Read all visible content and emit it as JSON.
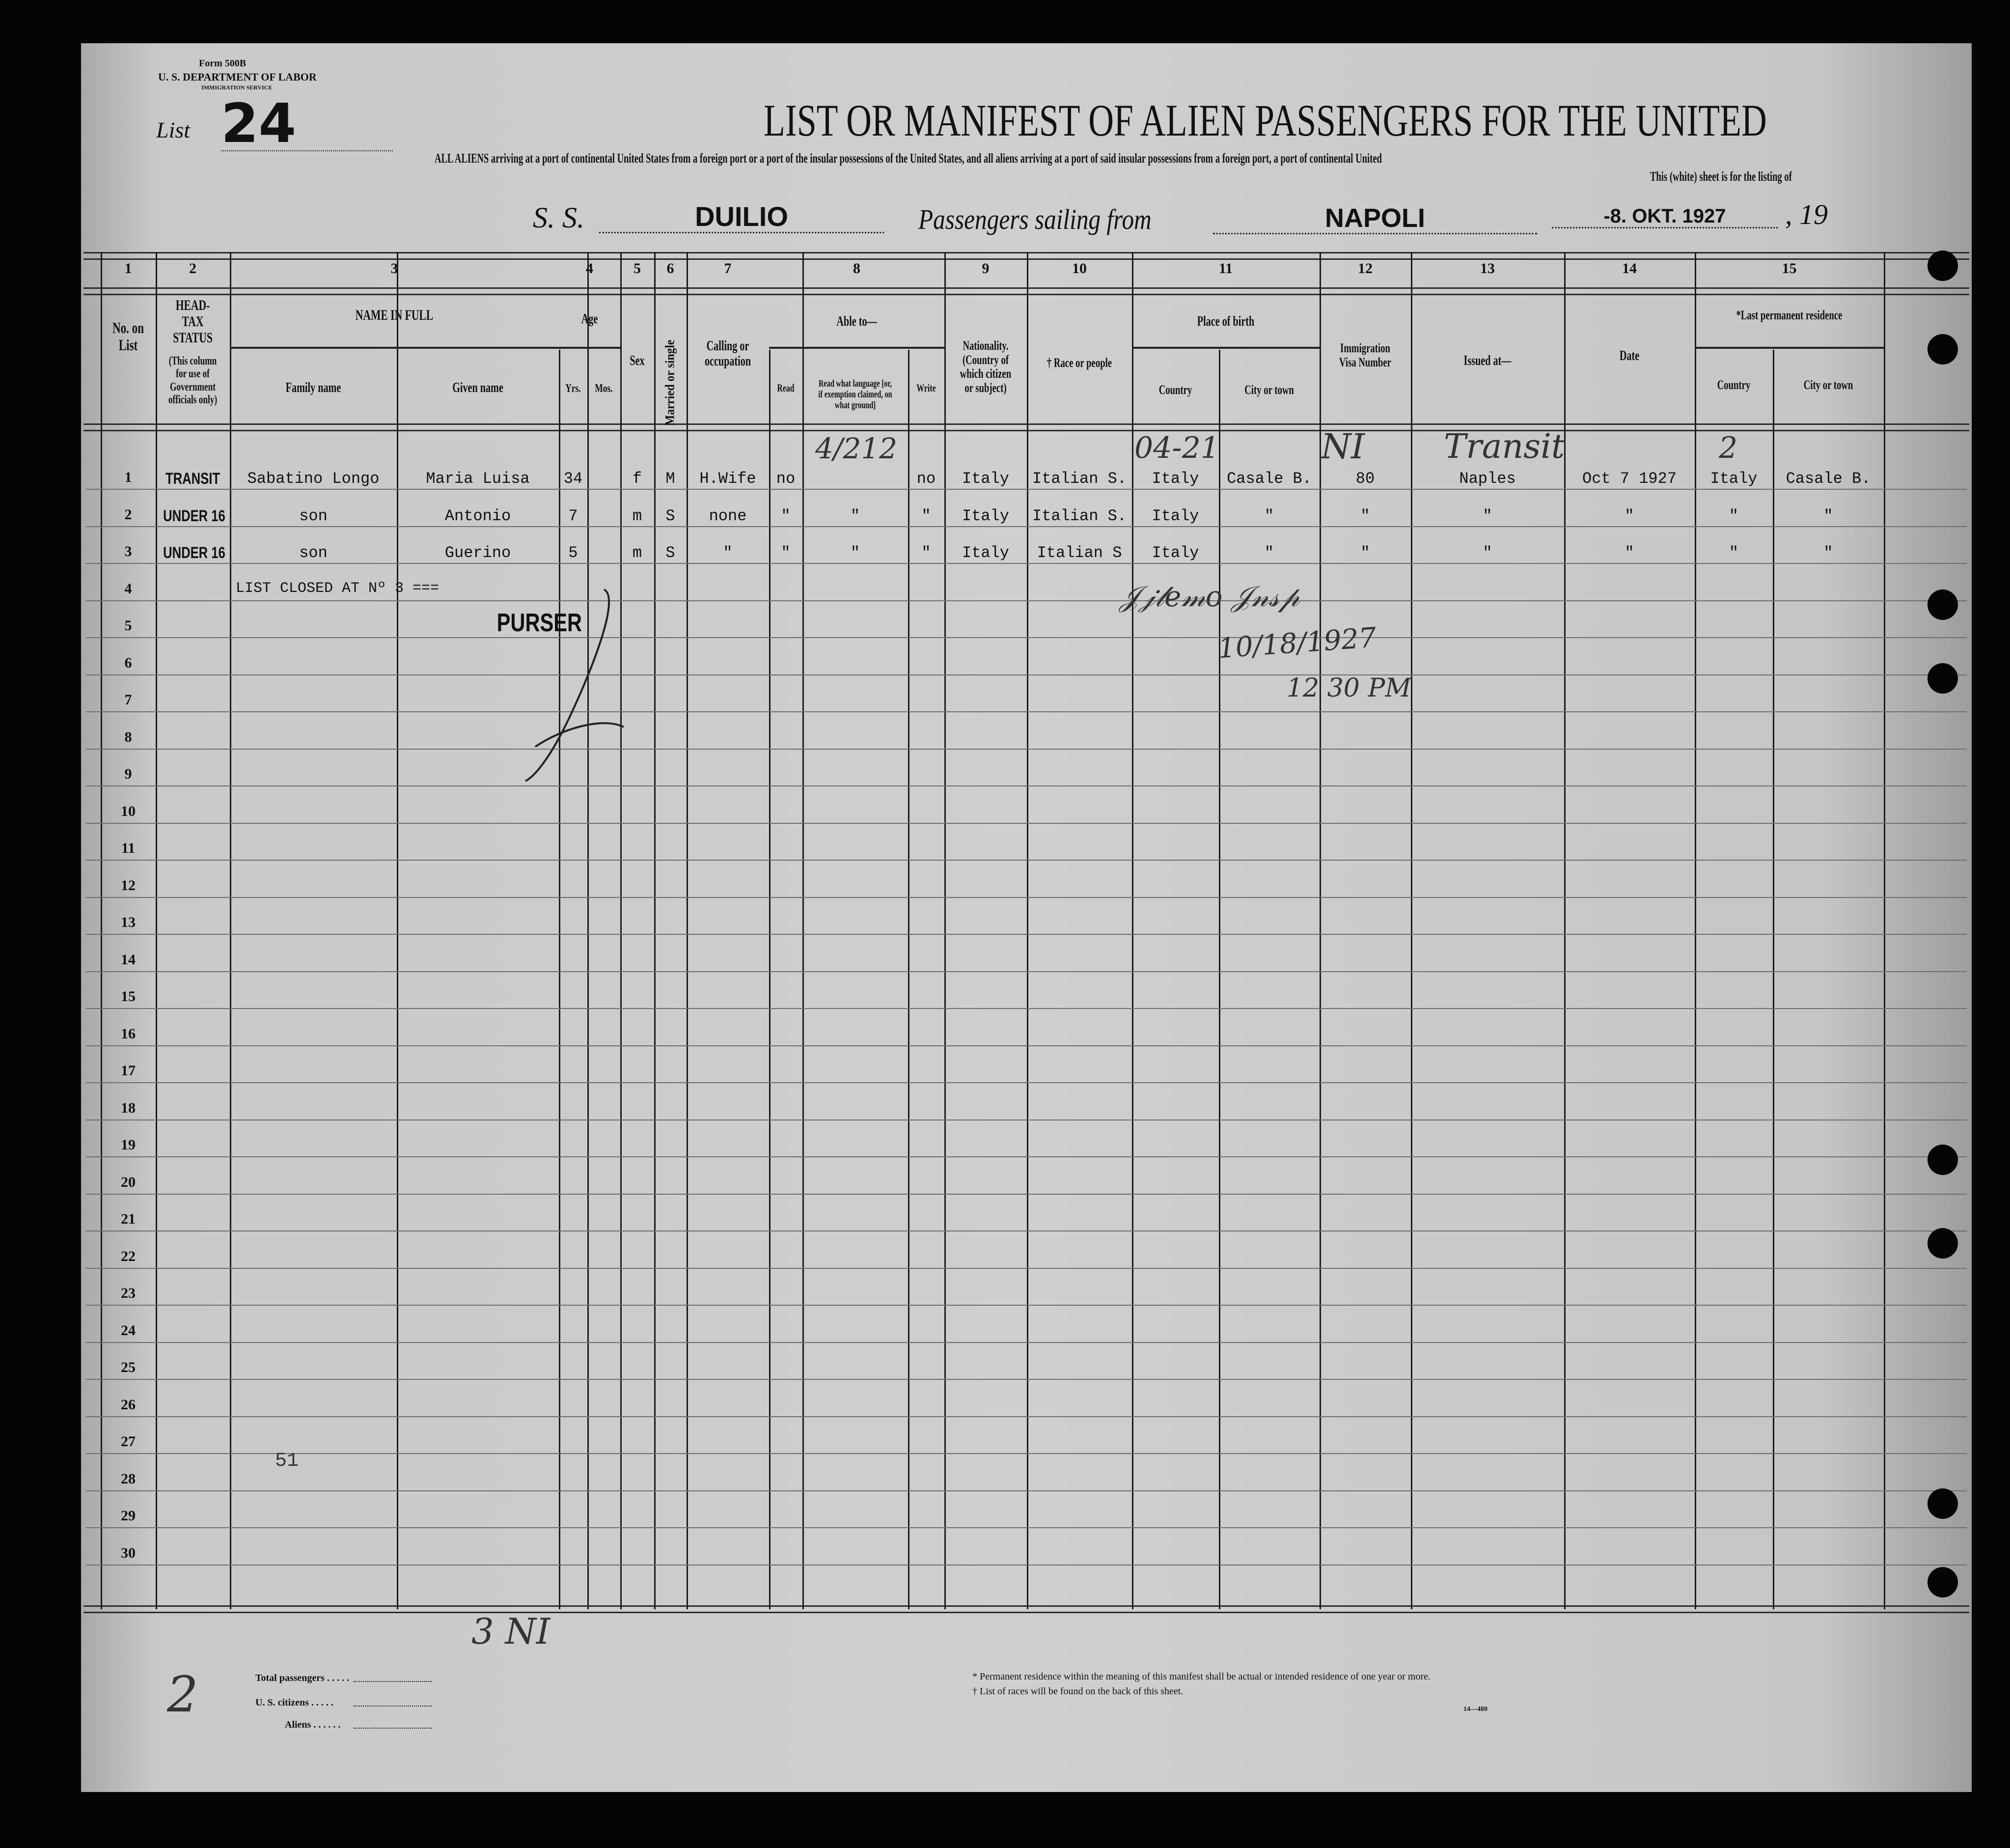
{
  "form": {
    "form_no": "Form 500B",
    "department": "U. S. DEPARTMENT OF LABOR",
    "service": "IMMIGRATION SERVICE",
    "list_label": "List",
    "list_number": "24"
  },
  "title": "LIST OR MANIFEST OF ALIEN PASSENGERS FOR THE UNITED",
  "subtitle": "ALL ALIENS arriving at a port of continental United States from a foreign port or a port of the insular possessions of the United States, and all aliens arriving at a port of said insular possessions from a foreign port, a port of continental United",
  "subtitle2": "This (white) sheet is for the listing of",
  "voyage": {
    "ss_label": "S. S.",
    "ship": "DUILIO",
    "sailing_label": "Passengers sailing from",
    "port": "NAPOLI",
    "date": "-8. OKT. 1927",
    "year_label": ", 19"
  },
  "columns": {
    "numbers": [
      "1",
      "2",
      "3",
      "4",
      "5",
      "6",
      "7",
      "8",
      "9",
      "10",
      "11",
      "12",
      "13",
      "14",
      "15"
    ],
    "no_on_list": "No. on List",
    "head_tax": "HEAD-TAX STATUS",
    "head_tax_note": "(This column for use of Government officials only)",
    "name_in_full": "NAME IN FULL",
    "family_name": "Family name",
    "given_name": "Given name",
    "age": "Age",
    "yrs": "Yrs.",
    "mos": "Mos.",
    "sex": "Sex",
    "married": "Married or single",
    "calling": "Calling or occupation",
    "able_to": "Able to—",
    "read": "Read",
    "read_lang": "Read what language [or, if exemption claimed, on what ground]",
    "write": "Write",
    "nationality": "Nationality. (Country of which citizen or subject)",
    "race": "† Race or people",
    "place_of_birth": "Place of birth",
    "country": "Country",
    "city": "City or town",
    "visa": "Immigration Visa Number",
    "issued_at": "Issued at—",
    "date": "Date",
    "last_residence": "*Last permanent residence",
    "res_country": "Country",
    "res_city": "City or town"
  },
  "row_numbers": [
    "1",
    "2",
    "3",
    "4",
    "5",
    "6",
    "7",
    "8",
    "9",
    "10",
    "11",
    "12",
    "13",
    "14",
    "15",
    "16",
    "17",
    "18",
    "19",
    "20",
    "21",
    "22",
    "23",
    "24",
    "25",
    "26",
    "27",
    "28",
    "29",
    "30"
  ],
  "passengers": [
    {
      "status": "TRANSIT",
      "family": "Sabatino Longo",
      "given": "Maria Luisa",
      "yrs": "34",
      "mos": "",
      "sex": "f",
      "married": "M",
      "calling": "H.Wife",
      "read": "no",
      "read_lang": "",
      "write": "no",
      "nationality": "Italy",
      "race": "Italian S.",
      "birth_country": "Italy",
      "birth_city": "Casale B.",
      "visa": "80",
      "issued": "Naples",
      "date": "Oct 7 1927",
      "res_country": "Italy",
      "res_city": "Casale B."
    },
    {
      "status": "UNDER 16",
      "family": "son",
      "given": "Antonio",
      "yrs": "7",
      "mos": "",
      "sex": "m",
      "married": "S",
      "calling": "none",
      "read": "\"",
      "read_lang": "\"",
      "write": "\"",
      "nationality": "Italy",
      "race": "Italian S.",
      "birth_country": "Italy",
      "birth_city": "\"",
      "visa": "\"",
      "issued": "\"",
      "date": "\"",
      "res_country": "\"",
      "res_city": "\""
    },
    {
      "status": "UNDER 16",
      "family": "son",
      "given": "Guerino",
      "yrs": "5",
      "mos": "",
      "sex": "m",
      "married": "S",
      "calling": "\"",
      "read": "\"",
      "read_lang": "\"",
      "write": "\"",
      "nationality": "Italy",
      "race": "Italian S",
      "birth_country": "Italy",
      "birth_city": "\"",
      "visa": "\"",
      "issued": "\"",
      "date": "\"",
      "res_country": "\"",
      "res_city": "\""
    }
  ],
  "list_closed": "LIST CLOSED AT Nº 3 ===",
  "purser_stamp": "PURSER",
  "handwritten": {
    "birth_note": "04-21",
    "visa_note": "NI",
    "issued_note": "Transit",
    "residence_note": "2",
    "readlang_note": "4/212",
    "inspector_date": "10/18/1927",
    "inspector_time": "12 30 PM",
    "row28_note": "51",
    "bottom_note": "3 NI",
    "totals_note": "2"
  },
  "footer": {
    "total_passengers": "Total passengers . . . . .",
    "us_citizens": "U. S. citizens . . . . .",
    "aliens": "Aliens . . . . . .",
    "footnote1": "* Permanent residence within the meaning of this manifest shall be actual or intended residence of one year or more.",
    "footnote2": "† List of races will be found on the back of this sheet.",
    "form_code": "14—480"
  }
}
